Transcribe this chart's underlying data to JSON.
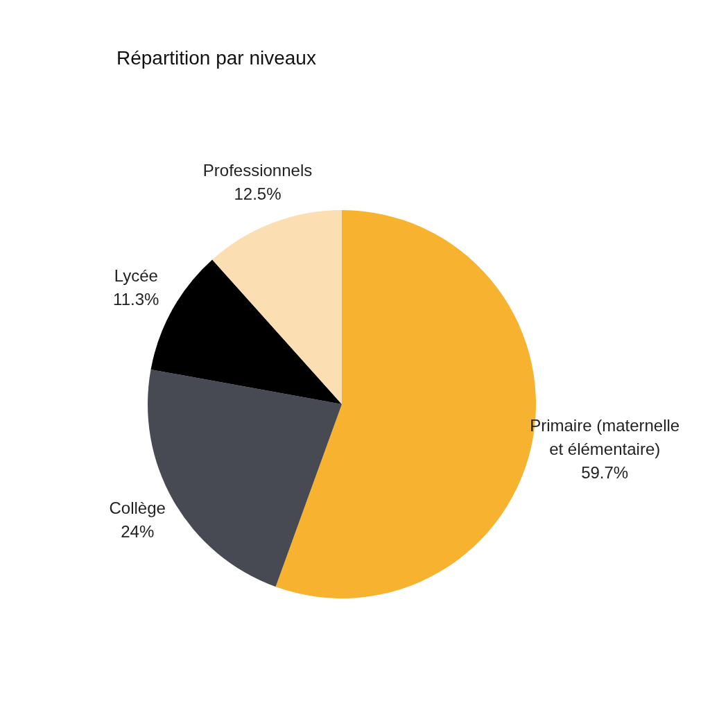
{
  "chart_data": {
    "type": "pie",
    "title": "Répartition par niveaux",
    "categories": [
      "Primaire (maternelle et élémentaire)",
      "Collège",
      "Lycée",
      "Professionnels"
    ],
    "values": [
      59.7,
      24,
      11.3,
      12.5
    ],
    "value_labels": [
      "59.7%",
      "24%",
      "11.3%",
      "12.5%"
    ],
    "colors": [
      "#f7b32f",
      "#474a52",
      "#000000",
      "#fbdeb2"
    ]
  }
}
